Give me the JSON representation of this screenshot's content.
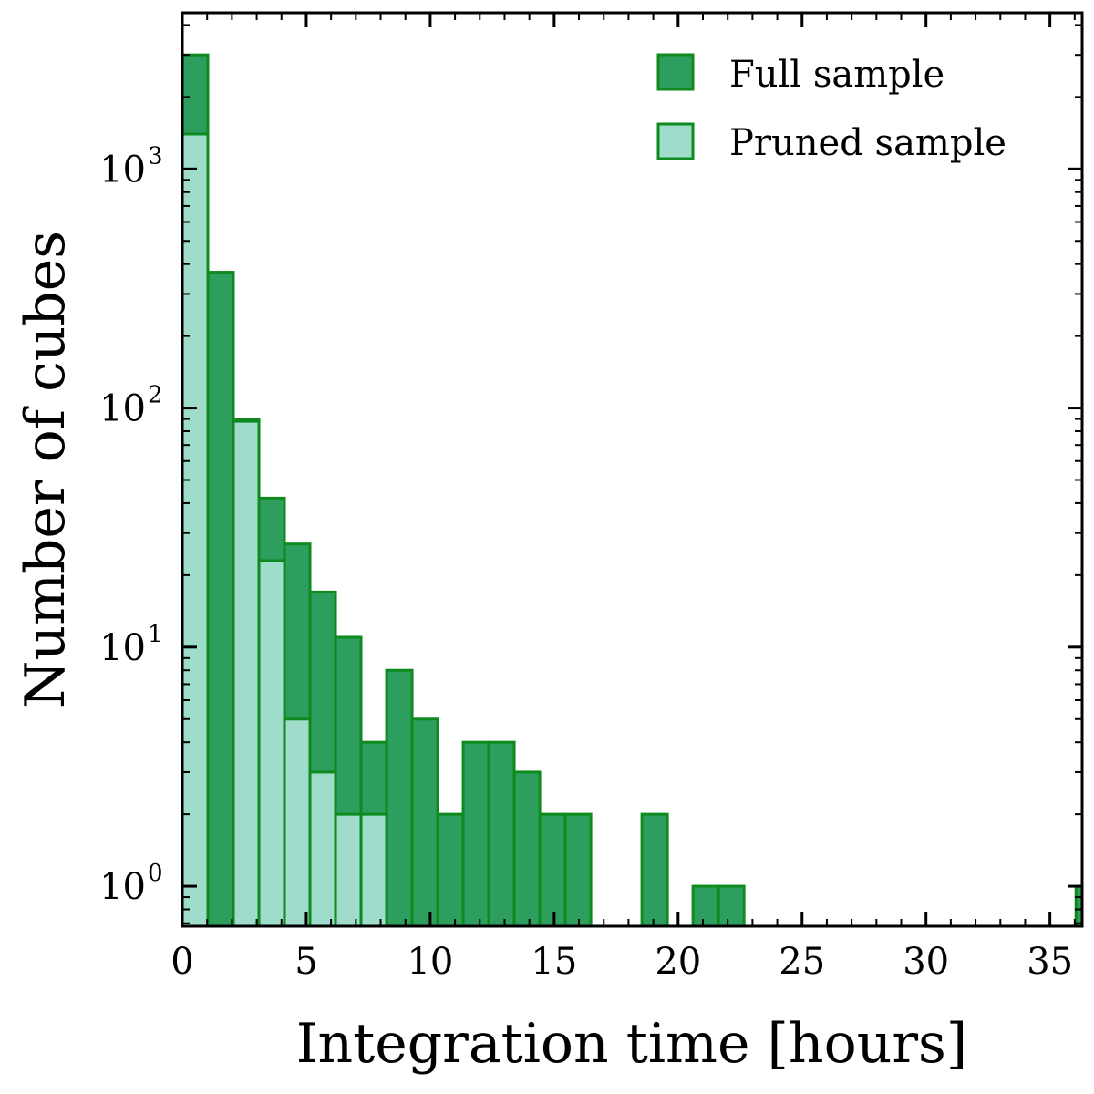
{
  "chart_data": {
    "type": "bar",
    "title": "",
    "xlabel": "Integration time [hours]",
    "ylabel": "Number of cubes",
    "yscale": "log",
    "xlim": [
      0,
      36.3
    ],
    "ylim": [
      0.68,
      4500
    ],
    "bin_width": 1.03,
    "x_ticks": [
      0,
      5,
      10,
      15,
      20,
      25,
      30,
      35
    ],
    "x_tick_labels": [
      "0",
      "5",
      "10",
      "15",
      "20",
      "25",
      "30",
      "35"
    ],
    "y_ticks": [
      {
        "value": 1,
        "base": "10",
        "exp": "0"
      },
      {
        "value": 10,
        "base": "10",
        "exp": "1"
      },
      {
        "value": 100,
        "base": "10",
        "exp": "2"
      },
      {
        "value": 1000,
        "base": "10",
        "exp": "3"
      }
    ],
    "legend_position": "top-right",
    "colors": {
      "full_fill": "#2e9e5e",
      "pruned_fill": "#9fdccc",
      "edge": "#0f8a1e"
    },
    "series": [
      {
        "name": "Full sample",
        "values": [
          3000,
          370,
          90,
          42,
          27,
          17,
          11,
          4,
          8,
          5,
          2,
          4,
          4,
          3,
          2,
          2,
          0,
          0,
          2,
          0,
          1,
          1,
          0,
          0,
          0,
          0,
          0,
          0,
          0,
          0,
          0,
          0,
          0,
          0,
          0,
          1
        ]
      },
      {
        "name": "Pruned sample",
        "values": [
          1400,
          0,
          88,
          23,
          5,
          3,
          2,
          2,
          0,
          0,
          0,
          0,
          0,
          0,
          0,
          0,
          0,
          0,
          0,
          0,
          0,
          0,
          0,
          0,
          0,
          0,
          0,
          0,
          0,
          0,
          0,
          0,
          0,
          0,
          0,
          0
        ]
      }
    ]
  }
}
